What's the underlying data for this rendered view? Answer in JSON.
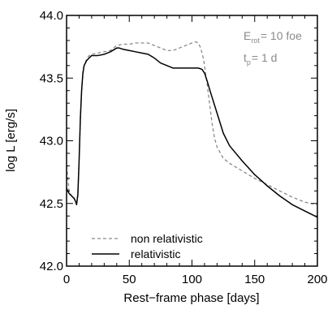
{
  "chart_data": {
    "type": "line",
    "xlabel": "Rest−frame phase [days]",
    "ylabel": "log L [erg/s]",
    "xlim": [
      0,
      200
    ],
    "ylim": [
      42.0,
      44.0
    ],
    "xticks": [
      0,
      50,
      100,
      150,
      200
    ],
    "xtick_labels": [
      "0",
      "50",
      "100",
      "150",
      "200"
    ],
    "yticks": [
      42.0,
      42.5,
      43.0,
      43.5,
      44.0
    ],
    "ytick_labels": [
      "42.0",
      "42.5",
      "43.0",
      "43.5",
      "44.0"
    ],
    "grid": false,
    "legend_position": "bottom-left",
    "annotation": {
      "line1_base": "E",
      "line1_sub": "rot",
      "line1_rest": "= 10 foe",
      "line2_base": "t",
      "line2_sub": "p",
      "line2_rest": "= 1 d"
    },
    "series": [
      {
        "name": "non relativistic",
        "style": "dashed",
        "color": "#8a8a8a",
        "x": [
          0,
          2,
          4,
          6,
          7,
          8,
          9,
          10,
          11,
          12,
          13,
          14,
          16,
          18,
          20,
          25,
          30,
          35,
          40,
          45,
          50,
          55,
          60,
          65,
          70,
          75,
          80,
          85,
          90,
          95,
          100,
          103,
          105,
          107,
          109,
          110,
          112,
          114,
          116,
          118,
          120,
          125,
          130,
          140,
          150,
          160,
          170,
          180,
          190,
          200
        ],
        "y": [
          42.8,
          42.6,
          42.56,
          42.55,
          42.52,
          42.5,
          42.58,
          42.85,
          43.15,
          43.38,
          43.52,
          43.6,
          43.65,
          43.68,
          43.69,
          43.7,
          43.71,
          43.72,
          43.76,
          43.77,
          43.77,
          43.78,
          43.78,
          43.78,
          43.76,
          43.74,
          43.72,
          43.72,
          43.74,
          43.76,
          43.78,
          43.79,
          43.78,
          43.74,
          43.66,
          43.6,
          43.46,
          43.3,
          43.14,
          43.02,
          42.95,
          42.86,
          42.82,
          42.76,
          42.7,
          42.65,
          42.6,
          42.55,
          42.51,
          42.49
        ]
      },
      {
        "name": "relativistic",
        "style": "solid",
        "color": "#000000",
        "x": [
          0,
          2,
          4,
          6,
          7,
          8,
          9,
          10,
          11,
          12,
          13,
          14,
          16,
          18,
          20,
          25,
          30,
          35,
          40,
          42,
          45,
          50,
          55,
          60,
          65,
          70,
          75,
          80,
          85,
          90,
          95,
          100,
          105,
          108,
          110,
          112,
          115,
          120,
          125,
          130,
          140,
          150,
          160,
          170,
          180,
          190,
          200
        ],
        "y": [
          42.62,
          42.58,
          42.56,
          42.54,
          42.52,
          42.49,
          42.57,
          42.84,
          43.18,
          43.4,
          43.54,
          43.6,
          43.64,
          43.66,
          43.68,
          43.68,
          43.69,
          43.71,
          43.74,
          43.74,
          43.73,
          43.72,
          43.71,
          43.7,
          43.69,
          43.66,
          43.62,
          43.6,
          43.58,
          43.58,
          43.58,
          43.58,
          43.58,
          43.57,
          43.54,
          43.48,
          43.38,
          43.22,
          43.06,
          42.96,
          42.84,
          42.73,
          42.64,
          42.56,
          42.49,
          42.44,
          42.39
        ]
      }
    ]
  }
}
